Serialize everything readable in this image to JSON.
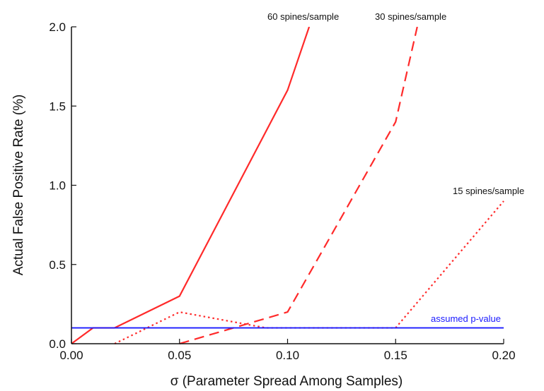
{
  "chart_data": {
    "type": "line",
    "title": "",
    "xlabel": "σ (Parameter Spread Among Samples)",
    "ylabel": "Actual False Positive Rate (%)",
    "xlim": [
      0,
      0.2
    ],
    "ylim": [
      0,
      2.0
    ],
    "x_ticks": [
      "0.00",
      "0.05",
      "0.10",
      "0.15",
      "0.20"
    ],
    "y_ticks": [
      "0.0",
      "0.5",
      "1.0",
      "1.5",
      "2.0"
    ],
    "grid": false,
    "series": [
      {
        "name": "60 spines/sample",
        "color": "#ff2a2a",
        "style": "solid",
        "x": [
          0.0,
          0.01,
          0.02,
          0.05,
          0.1,
          0.11
        ],
        "y": [
          0.0,
          0.1,
          0.1,
          0.3,
          1.6,
          2.0
        ]
      },
      {
        "name": "30 spines/sample",
        "color": "#ff2a2a",
        "style": "dashed",
        "x": [
          0.05,
          0.075,
          0.1,
          0.15,
          0.16
        ],
        "y": [
          0.0,
          0.1,
          0.2,
          1.4,
          2.0
        ]
      },
      {
        "name": "15 spines/sample",
        "color": "#ff2a2a",
        "style": "dotted",
        "x": [
          0.02,
          0.05,
          0.09,
          0.15,
          0.2
        ],
        "y": [
          0.0,
          0.2,
          0.1,
          0.1,
          0.9
        ]
      },
      {
        "name": "assumed p-value",
        "color": "#1a1aff",
        "style": "solid",
        "x": [
          0.0,
          0.2
        ],
        "y": [
          0.1,
          0.1
        ]
      }
    ],
    "annotations": [
      {
        "text": "60 spines/sample",
        "series": 0
      },
      {
        "text": "30 spines/sample",
        "series": 1
      },
      {
        "text": "15 spines/sample",
        "series": 2
      },
      {
        "text": "assumed p-value",
        "series": 3
      }
    ]
  }
}
